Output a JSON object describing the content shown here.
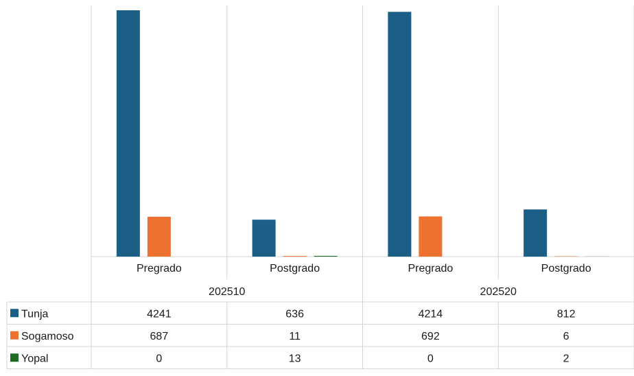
{
  "chart_data": {
    "type": "bar",
    "title": "",
    "xlabel": "",
    "ylabel": "",
    "ylim": [
      0,
      4241
    ],
    "grid": false,
    "legend": "data-table",
    "groups": [
      {
        "label": "202510",
        "categories": [
          "Pregrado",
          "Postgrado"
        ]
      },
      {
        "label": "202520",
        "categories": [
          "Pregrado",
          "Postgrado"
        ]
      }
    ],
    "series": [
      {
        "name": "Tunja",
        "color": "#1b5e86",
        "values": [
          4241,
          636,
          4214,
          812
        ]
      },
      {
        "name": "Sogamoso",
        "color": "#ed7232",
        "values": [
          687,
          11,
          692,
          6
        ]
      },
      {
        "name": "Yopal",
        "color": "#1e6b25",
        "values": [
          0,
          13,
          0,
          2
        ]
      }
    ],
    "table": {
      "rows": [
        {
          "label": "Tunja",
          "cells": [
            "4241",
            "636",
            "4214",
            "812"
          ]
        },
        {
          "label": "Sogamoso",
          "cells": [
            "687",
            "11",
            "692",
            "6"
          ]
        },
        {
          "label": "Yopal",
          "cells": [
            "0",
            "13",
            "0",
            "2"
          ]
        }
      ]
    }
  }
}
